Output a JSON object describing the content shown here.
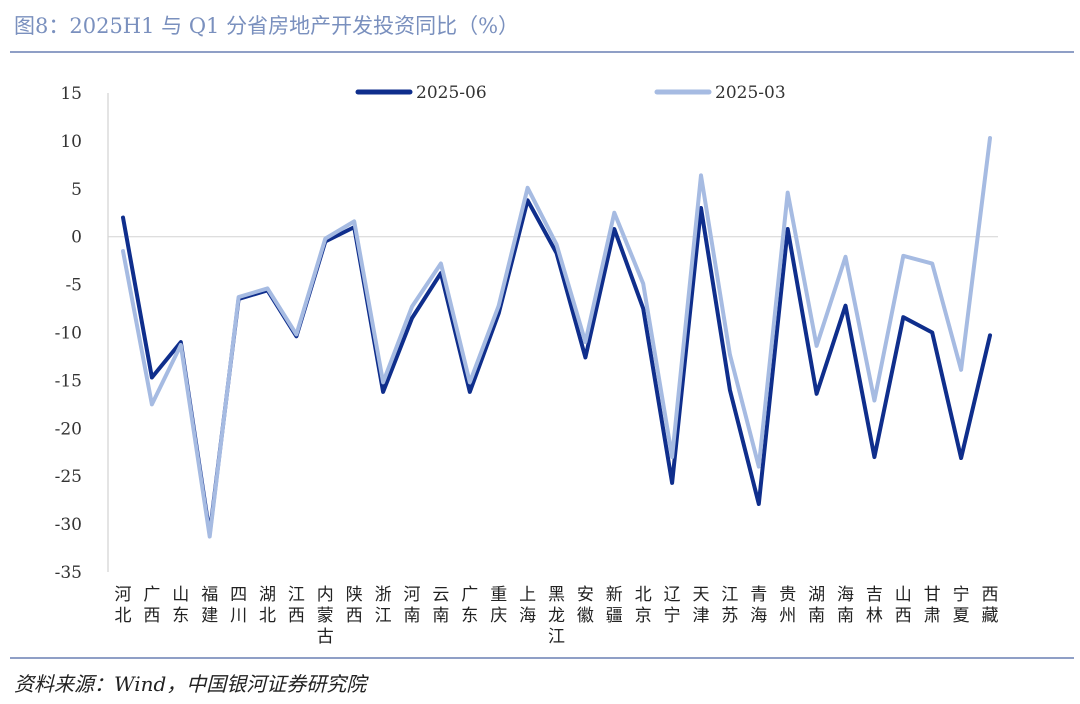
{
  "header": {
    "title": "图8：2025H1 与 Q1 分省房地产开发投资同比（%）"
  },
  "footer": {
    "source": "资料来源：Wind，中国银河证券研究院"
  },
  "chart_data": {
    "type": "line",
    "title": "图8：2025H1 与 Q1 分省房地产开发投资同比（%）",
    "ylim": [
      -35,
      15
    ],
    "yticks": [
      15,
      10,
      5,
      0,
      -5,
      -10,
      -15,
      -20,
      -25,
      -30,
      -35
    ],
    "ytick_labels": [
      "15",
      "10",
      "5",
      "0",
      "-5",
      "-10",
      "-15",
      "-20",
      "-25",
      "-30",
      "-35"
    ],
    "legend_position": "top",
    "grid": false,
    "categories": [
      "河北",
      "广西",
      "山东",
      "福建",
      "四川",
      "湖北",
      "江西",
      "内蒙古",
      "陕西",
      "浙江",
      "河南",
      "云南",
      "广东",
      "重庆",
      "上海",
      "黑龙江",
      "安徽",
      "新疆",
      "北京",
      "辽宁",
      "天津",
      "江苏",
      "青海",
      "贵州",
      "湖南",
      "海南",
      "吉林",
      "山西",
      "甘肃",
      "宁夏",
      "西藏"
    ],
    "series": [
      {
        "name": "2025-06",
        "color": "#0f2e8c",
        "values": [
          2.0,
          -14.7,
          -11.0,
          -31.0,
          -6.5,
          -5.6,
          -10.4,
          -0.5,
          1.0,
          -16.2,
          -8.5,
          -3.8,
          -16.2,
          -8.0,
          3.8,
          -1.7,
          -12.6,
          0.8,
          -7.5,
          -25.7,
          3.0,
          -16.0,
          -27.9,
          0.8,
          -16.4,
          -7.2,
          -23.0,
          -8.4,
          -10.0,
          -23.1,
          -10.3
        ]
      },
      {
        "name": "2025-03",
        "color": "#a6bbe2",
        "values": [
          -1.5,
          -17.5,
          -11.3,
          -31.3,
          -6.3,
          -5.4,
          -10.2,
          -0.2,
          1.6,
          -15.2,
          -7.3,
          -2.8,
          -15.2,
          -7.2,
          5.1,
          -0.8,
          -11.0,
          2.5,
          -4.9,
          -23.0,
          6.4,
          -12.3,
          -24.0,
          4.6,
          -11.4,
          -2.1,
          -17.1,
          -2.0,
          -2.8,
          -13.9,
          10.3
        ]
      }
    ]
  }
}
